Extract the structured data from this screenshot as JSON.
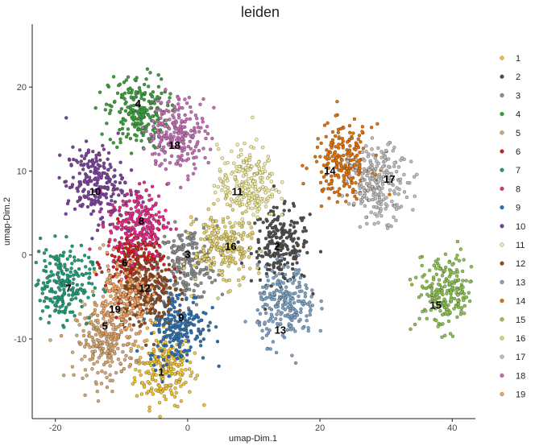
{
  "chart_data": {
    "type": "scatter",
    "title": "leiden",
    "xlabel": "umap-Dim.1",
    "ylabel": "umap-Dim.2",
    "xlim": [
      -23.5,
      43.5
    ],
    "ylim": [
      -19.5,
      27.5
    ],
    "x_ticks": [
      -20,
      0,
      20,
      40
    ],
    "y_ticks": [
      -10,
      0,
      10,
      20
    ],
    "grid": false,
    "legend_position": "right",
    "series": [
      {
        "name": "1",
        "color": "#F2C12E",
        "x": -3.5,
        "y": -13.5
      },
      {
        "name": "2",
        "color": "#4D4D4D",
        "x": 14.0,
        "y": 1.0
      },
      {
        "name": "3",
        "color": "#8C8C8C",
        "x": 0.0,
        "y": -1.0
      },
      {
        "name": "4",
        "color": "#3A9E3A",
        "x": -7.5,
        "y": 17.0
      },
      {
        "name": "5",
        "color": "#D9A66B",
        "x": -12.5,
        "y": -10.5
      },
      {
        "name": "6",
        "color": "#D7191C",
        "x": -8.0,
        "y": -1.0
      },
      {
        "name": "7",
        "color": "#1A9E77",
        "x": -19.0,
        "y": -3.5
      },
      {
        "name": "8",
        "color": "#E7298A",
        "x": -7.5,
        "y": 4.0
      },
      {
        "name": "9",
        "color": "#2C6FB0",
        "x": -1.5,
        "y": -8.5
      },
      {
        "name": "10",
        "color": "#7B3F9E",
        "x": -14.0,
        "y": 8.5
      },
      {
        "name": "11",
        "color": "#F3EE9A",
        "x": 9.0,
        "y": 8.5
      },
      {
        "name": "12",
        "color": "#8B4A1C",
        "x": -6.5,
        "y": -4.0
      },
      {
        "name": "13",
        "color": "#7BA3C8",
        "x": 15.0,
        "y": -6.0
      },
      {
        "name": "14",
        "color": "#E66F00",
        "x": 23.5,
        "y": 11.0
      },
      {
        "name": "15",
        "color": "#8BC34A",
        "x": 39.0,
        "y": -4.5
      },
      {
        "name": "16",
        "color": "#E8D36A",
        "x": 5.5,
        "y": 1.0
      },
      {
        "name": "17",
        "color": "#BDBDBD",
        "x": 29.0,
        "y": 8.5
      },
      {
        "name": "18",
        "color": "#C86BB8",
        "x": -1.5,
        "y": 14.5
      },
      {
        "name": "19",
        "color": "#F4A460",
        "x": -10.0,
        "y": -5.5
      }
    ],
    "cluster_labels": [
      {
        "text": "1",
        "x": -4,
        "y": -14
      },
      {
        "text": "2",
        "x": 13.5,
        "y": 1
      },
      {
        "text": "3",
        "x": 0,
        "y": 0
      },
      {
        "text": "4",
        "x": -7.5,
        "y": 18
      },
      {
        "text": "5",
        "x": -12.5,
        "y": -8.5
      },
      {
        "text": "6",
        "x": -9.5,
        "y": -1
      },
      {
        "text": "7",
        "x": -18,
        "y": -4
      },
      {
        "text": "8",
        "x": -7,
        "y": 4
      },
      {
        "text": "9",
        "x": -1,
        "y": -7.5
      },
      {
        "text": "10",
        "x": -14,
        "y": 7.5
      },
      {
        "text": "11",
        "x": 7.5,
        "y": 7.5
      },
      {
        "text": "12",
        "x": -6.5,
        "y": -4
      },
      {
        "text": "13",
        "x": 14,
        "y": -9
      },
      {
        "text": "14",
        "x": 21.5,
        "y": 10
      },
      {
        "text": "15",
        "x": 37.5,
        "y": -6
      },
      {
        "text": "16",
        "x": 6.5,
        "y": 1
      },
      {
        "text": "17",
        "x": 30.5,
        "y": 9
      },
      {
        "text": "18",
        "x": -2,
        "y": 13
      },
      {
        "text": "19",
        "x": -11,
        "y": -6.5
      }
    ]
  }
}
